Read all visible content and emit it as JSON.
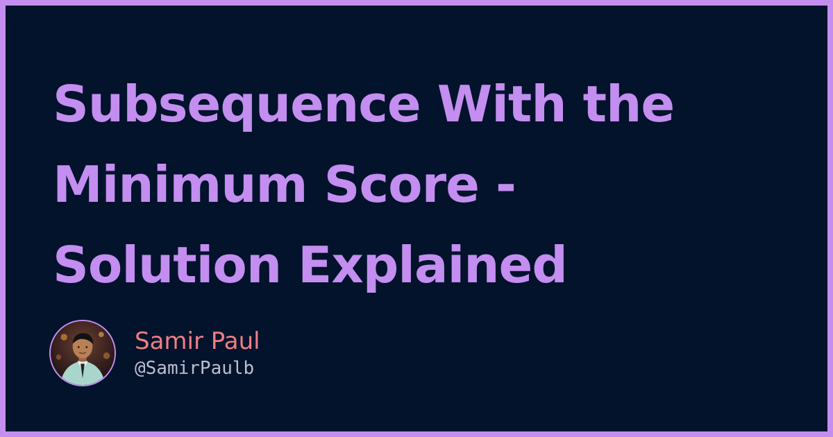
{
  "title": {
    "lines": [
      "Subsequence With the",
      "Minimum Score -",
      "Solution Explained"
    ]
  },
  "author": {
    "name": "Samir Paul",
    "handle": "@SamirPaulb",
    "avatar_icon": "person-avatar-icon"
  },
  "colors": {
    "frame": "#c38ef0",
    "background": "#03132b",
    "title": "#c38ef0",
    "author_name": "#ef7e84",
    "author_handle": "#b9c0d0"
  }
}
